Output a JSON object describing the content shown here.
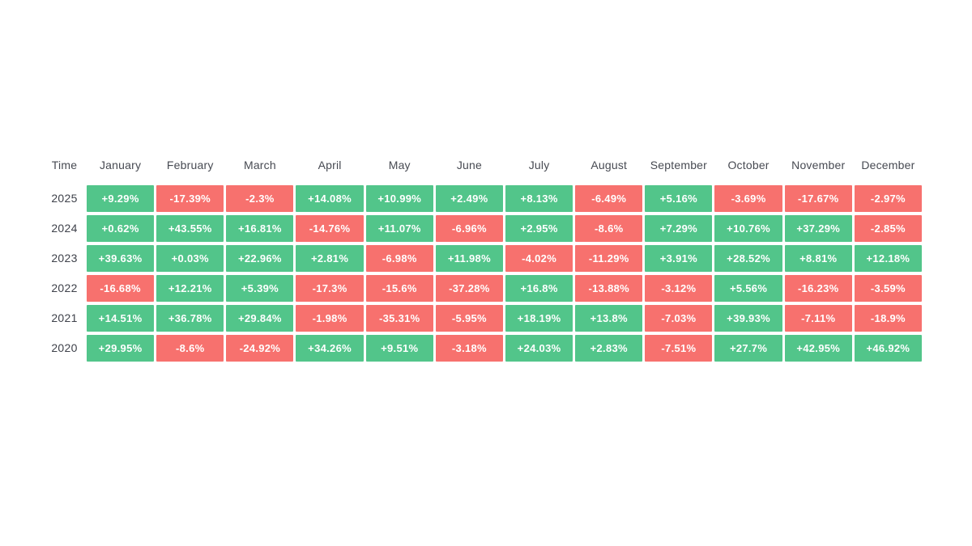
{
  "colors": {
    "positive_cell": "#52c58a",
    "negative_cell": "#f7716e",
    "cell_text": "#ffffff",
    "header_text": "#474a52",
    "year_text": "#3e414a",
    "background": "#ffffff"
  },
  "table": {
    "time_header": "Time",
    "months": [
      "January",
      "February",
      "March",
      "April",
      "May",
      "June",
      "July",
      "August",
      "September",
      "October",
      "November",
      "December"
    ],
    "rows": [
      {
        "year": "2025",
        "cells": [
          "+9.29%",
          "-17.39%",
          "-2.3%",
          "+14.08%",
          "+10.99%",
          "+2.49%",
          "+8.13%",
          "-6.49%",
          "+5.16%",
          "-3.69%",
          "-17.67%",
          "-2.97%"
        ]
      },
      {
        "year": "2024",
        "cells": [
          "+0.62%",
          "+43.55%",
          "+16.81%",
          "-14.76%",
          "+11.07%",
          "-6.96%",
          "+2.95%",
          "-8.6%",
          "+7.29%",
          "+10.76%",
          "+37.29%",
          "-2.85%"
        ]
      },
      {
        "year": "2023",
        "cells": [
          "+39.63%",
          "+0.03%",
          "+22.96%",
          "+2.81%",
          "-6.98%",
          "+11.98%",
          "-4.02%",
          "-11.29%",
          "+3.91%",
          "+28.52%",
          "+8.81%",
          "+12.18%"
        ]
      },
      {
        "year": "2022",
        "cells": [
          "-16.68%",
          "+12.21%",
          "+5.39%",
          "-17.3%",
          "-15.6%",
          "-37.28%",
          "+16.8%",
          "-13.88%",
          "-3.12%",
          "+5.56%",
          "-16.23%",
          "-3.59%"
        ]
      },
      {
        "year": "2021",
        "cells": [
          "+14.51%",
          "+36.78%",
          "+29.84%",
          "-1.98%",
          "-35.31%",
          "-5.95%",
          "+18.19%",
          "+13.8%",
          "-7.03%",
          "+39.93%",
          "-7.11%",
          "-18.9%"
        ]
      },
      {
        "year": "2020",
        "cells": [
          "+29.95%",
          "-8.6%",
          "-24.92%",
          "+34.26%",
          "+9.51%",
          "-3.18%",
          "+24.03%",
          "+2.83%",
          "-7.51%",
          "+27.7%",
          "+42.95%",
          "+46.92%"
        ]
      }
    ]
  },
  "chart_data": {
    "type": "heatmap",
    "title": "",
    "xlabel": "Time",
    "x": [
      "January",
      "February",
      "March",
      "April",
      "May",
      "June",
      "July",
      "August",
      "September",
      "October",
      "November",
      "December"
    ],
    "y": [
      "2025",
      "2024",
      "2023",
      "2022",
      "2021",
      "2020"
    ],
    "unit": "%",
    "legend_position": "none",
    "grid": false,
    "series": [
      {
        "name": "2025",
        "values": [
          9.29,
          -17.39,
          -2.3,
          14.08,
          10.99,
          2.49,
          8.13,
          -6.49,
          5.16,
          -3.69,
          -17.67,
          -2.97
        ]
      },
      {
        "name": "2024",
        "values": [
          0.62,
          43.55,
          16.81,
          -14.76,
          11.07,
          -6.96,
          2.95,
          -8.6,
          7.29,
          10.76,
          37.29,
          -2.85
        ]
      },
      {
        "name": "2023",
        "values": [
          39.63,
          0.03,
          22.96,
          2.81,
          -6.98,
          11.98,
          -4.02,
          -11.29,
          3.91,
          28.52,
          8.81,
          12.18
        ]
      },
      {
        "name": "2022",
        "values": [
          -16.68,
          12.21,
          5.39,
          -17.3,
          -15.6,
          -37.28,
          16.8,
          -13.88,
          -3.12,
          5.56,
          -16.23,
          -3.59
        ]
      },
      {
        "name": "2021",
        "values": [
          14.51,
          36.78,
          29.84,
          -1.98,
          -35.31,
          -5.95,
          18.19,
          13.8,
          -7.03,
          39.93,
          -7.11,
          -18.9
        ]
      },
      {
        "name": "2020",
        "values": [
          29.95,
          -8.6,
          -24.92,
          34.26,
          9.51,
          -3.18,
          24.03,
          2.83,
          -7.51,
          27.7,
          42.95,
          46.92
        ]
      }
    ]
  }
}
